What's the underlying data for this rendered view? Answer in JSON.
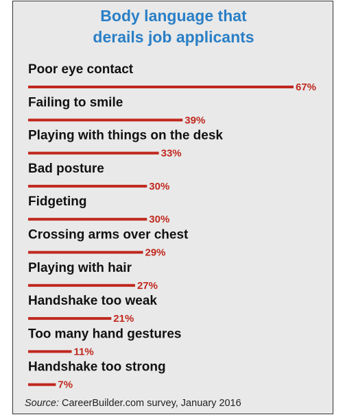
{
  "chart_data": {
    "type": "bar",
    "orientation": "horizontal",
    "title_lines": [
      "Body language that",
      "derails job applicants"
    ],
    "categories": [
      "Poor eye contact",
      "Failing to smile",
      "Playing with things on the desk",
      "Bad posture",
      "Fidgeting",
      "Crossing arms over chest",
      "Playing with hair",
      "Handshake too weak",
      "Too many hand gestures",
      "Handshake too strong"
    ],
    "values": [
      67,
      39,
      33,
      30,
      30,
      29,
      27,
      21,
      11,
      7
    ],
    "value_labels": [
      "67%",
      "39%",
      "33%",
      "30%",
      "30%",
      "29%",
      "27%",
      "21%",
      "11%",
      "7%"
    ],
    "unit": "%",
    "xlim": [
      0,
      67
    ],
    "grid": false,
    "legend": "none",
    "source_label": "Source:",
    "source_text": "CareerBuilder.com survey, January 2016"
  },
  "colors": {
    "bar": "#c0281e",
    "value_label": "#c0281e",
    "title": "#2a7fc6",
    "category_label": "#111111",
    "background": "#e9e9e9"
  }
}
